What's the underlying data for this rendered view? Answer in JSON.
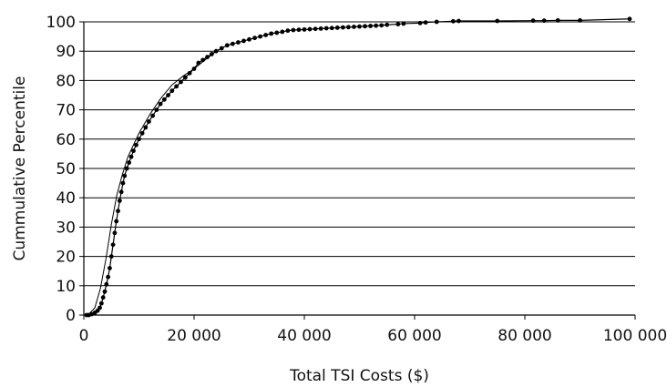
{
  "chart_data": {
    "type": "scatter",
    "title": "",
    "xlabel": "Total TSI Costs ($)",
    "ylabel": "Cummulative Percentile",
    "xlim": [
      0,
      100000
    ],
    "ylim": [
      0,
      100
    ],
    "x_ticks": [
      0,
      20000,
      40000,
      60000,
      80000,
      100000
    ],
    "x_tick_labels": [
      "0",
      "20 000",
      "40 000",
      "60 000",
      "80 000",
      "100 000"
    ],
    "y_ticks": [
      0,
      10,
      20,
      30,
      40,
      50,
      60,
      70,
      80,
      90,
      100
    ],
    "y_tick_labels": [
      "0",
      "10",
      "20",
      "30",
      "40",
      "50",
      "60",
      "70",
      "80",
      "90",
      "100"
    ],
    "grid": "horizontal",
    "legend": "none",
    "series": [
      {
        "kind": "points",
        "color": "#000000",
        "x": [
          500,
          900,
          1400,
          2000,
          2500,
          2900,
          3200,
          3500,
          3800,
          4100,
          4400,
          4700,
          5000,
          5300,
          5600,
          5900,
          6200,
          6500,
          6800,
          7100,
          7400,
          7800,
          8200,
          8600,
          9000,
          9500,
          10000,
          10600,
          11200,
          11800,
          12500,
          13200,
          13900,
          14600,
          15300,
          16000,
          16800,
          17600,
          18400,
          19200,
          20000,
          20800,
          21600,
          22400,
          23200,
          24000,
          25000,
          26000,
          27000,
          28000,
          29000,
          30000,
          31000,
          32000,
          33000,
          34000,
          35000,
          36000,
          37000,
          38000,
          39000,
          40000,
          41000,
          42000,
          43000,
          44000,
          45000,
          46000,
          47000,
          48000,
          49000,
          50000,
          51000,
          52000,
          53000,
          54000,
          55000,
          57000,
          58000,
          61000,
          62000,
          64000,
          67000,
          68000,
          75000,
          81500,
          83500,
          86000,
          90000,
          99000
        ],
        "y": [
          0,
          0,
          0.3,
          0.8,
          1.5,
          2.5,
          4,
          6,
          8,
          10.5,
          13,
          16,
          20,
          24,
          28,
          32,
          35.5,
          39,
          42,
          45,
          47.5,
          50,
          52,
          54,
          56,
          58,
          60,
          62,
          64,
          66,
          68,
          70,
          72,
          73.5,
          75,
          76.5,
          78,
          79.5,
          81,
          82.5,
          84,
          86,
          87,
          88,
          89,
          90,
          91,
          92,
          92.5,
          93,
          93.5,
          94,
          94.5,
          95,
          95.5,
          96,
          96.3,
          96.6,
          97,
          97.2,
          97.3,
          97.4,
          97.5,
          97.6,
          97.7,
          97.8,
          97.9,
          98,
          98.1,
          98.2,
          98.3,
          98.4,
          98.5,
          98.6,
          98.7,
          98.8,
          99,
          99.2,
          99.4,
          99.6,
          99.8,
          100,
          100.2,
          100.3,
          100.3,
          100.4,
          100.4,
          100.5,
          100.5,
          101
        ]
      },
      {
        "kind": "line",
        "color": "#000000",
        "x": [
          0,
          1000,
          2000,
          3000,
          4000,
          5000,
          6000,
          7000,
          8000,
          9000,
          10000,
          12000,
          14000,
          16000,
          18000,
          20000,
          22000,
          24000,
          26000
        ],
        "y": [
          0,
          0.5,
          2.5,
          9,
          19,
          31,
          41,
          48,
          54,
          58,
          62,
          68.5,
          74,
          78.5,
          81.5,
          84,
          87,
          90,
          92
        ]
      }
    ]
  }
}
